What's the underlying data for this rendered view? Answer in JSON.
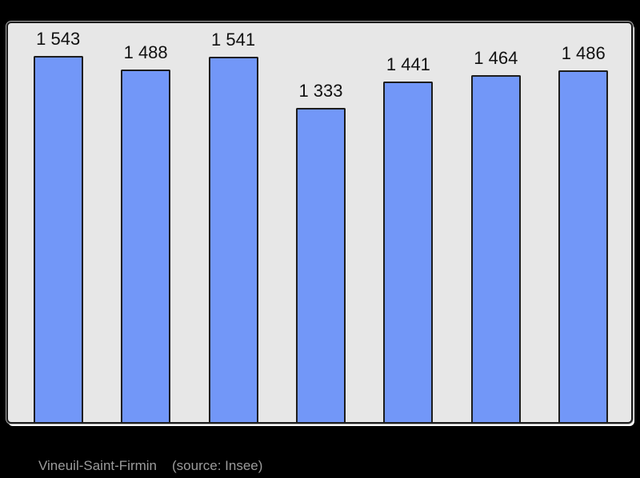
{
  "caption": {
    "commune": "Vineuil-Saint-Firmin",
    "source": "(source: Insee)"
  },
  "chart_data": {
    "type": "bar",
    "values": [
      1543,
      1488,
      1541,
      1333,
      1441,
      1464,
      1486
    ],
    "bar_labels": [
      "1 543",
      "1 488",
      "1 541",
      "1 333",
      "1 441",
      "1 464",
      "1 486"
    ],
    "title": "",
    "xlabel": "",
    "ylabel": "",
    "ylim": [
      66,
      1675
    ],
    "grid": false,
    "legend": false,
    "x_tick_labels": [],
    "colors": {
      "page_background": "#000000",
      "plot_background": "#e7e7e7",
      "panel_border": "#1f1f1f",
      "bar_fill": "#7297f8",
      "bar_border": "#1d1d1d",
      "value_label": "#111111",
      "caption_text": "#9b9b9b"
    }
  }
}
